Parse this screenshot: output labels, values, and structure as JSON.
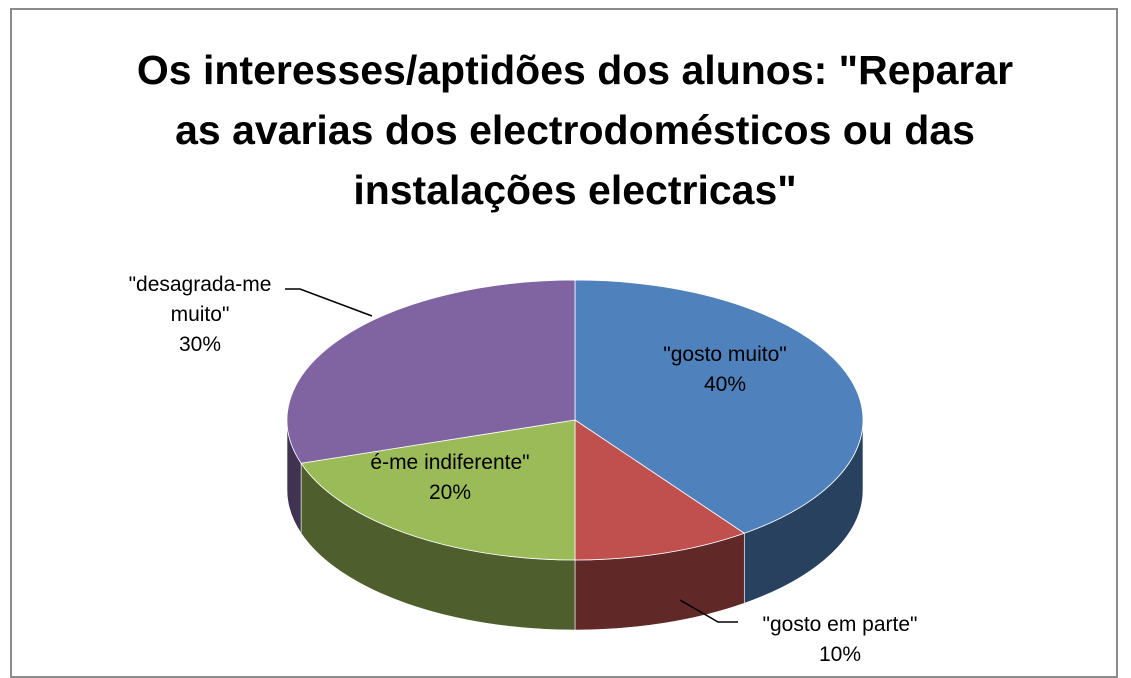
{
  "chart_data": {
    "type": "pie3d",
    "title": "Os interesses/aptidões dos alunos: \"Reparar as avarias dos electrodomésticos ou das instalações electricas\"",
    "categories": [
      "\"gosto muito\"",
      "\"gosto em parte\"",
      "é-me indiferente\"",
      "\"desagrada-me muito\""
    ],
    "values": [
      40,
      10,
      20,
      30
    ],
    "value_labels": [
      "40%",
      "10%",
      "20%",
      "30%"
    ],
    "colors": [
      "#4f81bd",
      "#c0504d",
      "#9bbb59",
      "#8064a2"
    ]
  }
}
